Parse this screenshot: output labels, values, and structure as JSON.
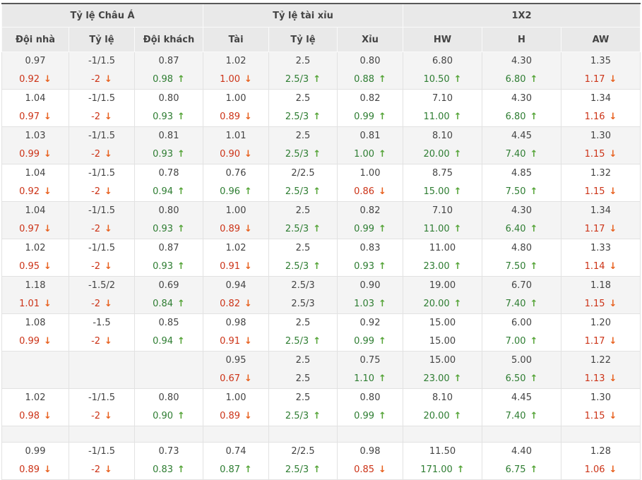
{
  "colors": {
    "top_border": "#585858",
    "header_bg": "#e9e9e9",
    "row_alt_bg": "#f4f4f4",
    "text_default": "#444444",
    "down_text": "#cc3317",
    "down_arrow": "#e8611f",
    "up_text": "#2e7d32",
    "up_arrow": "#55a437"
  },
  "icons": {
    "up": "↑",
    "down": "↓"
  },
  "table": {
    "groups": [
      {
        "label": "Tỷ lệ Châu Á",
        "span": 3
      },
      {
        "label": "Tỷ lệ tài xỉu",
        "span": 3
      },
      {
        "label": "1X2",
        "span": 3
      }
    ],
    "columns": [
      "Đội nhà",
      "Tỷ lệ",
      "Đội khách",
      "Tài",
      "Tỷ lệ",
      "Xỉu",
      "HW",
      "H",
      "AW"
    ],
    "rows": [
      {
        "type": "data",
        "cells": [
          {
            "top": "0.97",
            "bottom": "0.92",
            "trend": "down"
          },
          {
            "top": "-1/1.5",
            "bottom": "-2",
            "trend": "down"
          },
          {
            "top": "0.87",
            "bottom": "0.98",
            "trend": "up"
          },
          {
            "top": "1.02",
            "bottom": "1.00",
            "trend": "down"
          },
          {
            "top": "2.5",
            "bottom": "2.5/3",
            "trend": "up"
          },
          {
            "top": "0.80",
            "bottom": "0.88",
            "trend": "up"
          },
          {
            "top": "6.80",
            "bottom": "10.50",
            "trend": "up"
          },
          {
            "top": "4.30",
            "bottom": "6.80",
            "trend": "up"
          },
          {
            "top": "1.35",
            "bottom": "1.17",
            "trend": "down"
          }
        ]
      },
      {
        "type": "data",
        "cells": [
          {
            "top": "1.04",
            "bottom": "0.97",
            "trend": "down"
          },
          {
            "top": "-1/1.5",
            "bottom": "-2",
            "trend": "down"
          },
          {
            "top": "0.80",
            "bottom": "0.93",
            "trend": "up"
          },
          {
            "top": "1.00",
            "bottom": "0.89",
            "trend": "down"
          },
          {
            "top": "2.5",
            "bottom": "2.5/3",
            "trend": "up"
          },
          {
            "top": "0.82",
            "bottom": "0.99",
            "trend": "up"
          },
          {
            "top": "7.10",
            "bottom": "11.00",
            "trend": "up"
          },
          {
            "top": "4.30",
            "bottom": "6.80",
            "trend": "up"
          },
          {
            "top": "1.34",
            "bottom": "1.16",
            "trend": "down"
          }
        ]
      },
      {
        "type": "data",
        "cells": [
          {
            "top": "1.03",
            "bottom": "0.99",
            "trend": "down"
          },
          {
            "top": "-1/1.5",
            "bottom": "-2",
            "trend": "down"
          },
          {
            "top": "0.81",
            "bottom": "0.93",
            "trend": "up"
          },
          {
            "top": "1.01",
            "bottom": "0.90",
            "trend": "down"
          },
          {
            "top": "2.5",
            "bottom": "2.5/3",
            "trend": "up"
          },
          {
            "top": "0.81",
            "bottom": "1.00",
            "trend": "up"
          },
          {
            "top": "8.10",
            "bottom": "20.00",
            "trend": "up"
          },
          {
            "top": "4.45",
            "bottom": "7.40",
            "trend": "up"
          },
          {
            "top": "1.30",
            "bottom": "1.15",
            "trend": "down"
          }
        ]
      },
      {
        "type": "data",
        "cells": [
          {
            "top": "1.04",
            "bottom": "0.92",
            "trend": "down"
          },
          {
            "top": "-1/1.5",
            "bottom": "-2",
            "trend": "down"
          },
          {
            "top": "0.78",
            "bottom": "0.94",
            "trend": "up"
          },
          {
            "top": "0.76",
            "bottom": "0.96",
            "trend": "up"
          },
          {
            "top": "2/2.5",
            "bottom": "2.5/3",
            "trend": "up"
          },
          {
            "top": "1.00",
            "bottom": "0.86",
            "trend": "down"
          },
          {
            "top": "8.75",
            "bottom": "15.00",
            "trend": "up"
          },
          {
            "top": "4.85",
            "bottom": "7.50",
            "trend": "up"
          },
          {
            "top": "1.32",
            "bottom": "1.15",
            "trend": "down"
          }
        ]
      },
      {
        "type": "data",
        "cells": [
          {
            "top": "1.04",
            "bottom": "0.97",
            "trend": "down"
          },
          {
            "top": "-1/1.5",
            "bottom": "-2",
            "trend": "down"
          },
          {
            "top": "0.80",
            "bottom": "0.93",
            "trend": "up"
          },
          {
            "top": "1.00",
            "bottom": "0.89",
            "trend": "down"
          },
          {
            "top": "2.5",
            "bottom": "2.5/3",
            "trend": "up"
          },
          {
            "top": "0.82",
            "bottom": "0.99",
            "trend": "up"
          },
          {
            "top": "7.10",
            "bottom": "11.00",
            "trend": "up"
          },
          {
            "top": "4.30",
            "bottom": "6.40",
            "trend": "up"
          },
          {
            "top": "1.34",
            "bottom": "1.17",
            "trend": "down"
          }
        ]
      },
      {
        "type": "data",
        "cells": [
          {
            "top": "1.02",
            "bottom": "0.95",
            "trend": "down"
          },
          {
            "top": "-1/1.5",
            "bottom": "-2",
            "trend": "down"
          },
          {
            "top": "0.87",
            "bottom": "0.93",
            "trend": "up"
          },
          {
            "top": "1.02",
            "bottom": "0.91",
            "trend": "down"
          },
          {
            "top": "2.5",
            "bottom": "2.5/3",
            "trend": "up"
          },
          {
            "top": "0.83",
            "bottom": "0.93",
            "trend": "up"
          },
          {
            "top": "11.00",
            "bottom": "23.00",
            "trend": "up"
          },
          {
            "top": "4.80",
            "bottom": "7.50",
            "trend": "up"
          },
          {
            "top": "1.33",
            "bottom": "1.14",
            "trend": "down"
          }
        ]
      },
      {
        "type": "data",
        "cells": [
          {
            "top": "1.18",
            "bottom": "1.01",
            "trend": "down"
          },
          {
            "top": "-1.5/2",
            "bottom": "-2",
            "trend": "down"
          },
          {
            "top": "0.69",
            "bottom": "0.84",
            "trend": "up"
          },
          {
            "top": "0.94",
            "bottom": "0.82",
            "trend": "down"
          },
          {
            "top": "2.5/3",
            "bottom": "2.5/3",
            "trend": "none"
          },
          {
            "top": "0.90",
            "bottom": "1.03",
            "trend": "up"
          },
          {
            "top": "19.00",
            "bottom": "20.00",
            "trend": "up"
          },
          {
            "top": "6.70",
            "bottom": "7.40",
            "trend": "up"
          },
          {
            "top": "1.18",
            "bottom": "1.15",
            "trend": "down"
          }
        ]
      },
      {
        "type": "data",
        "cells": [
          {
            "top": "1.08",
            "bottom": "0.99",
            "trend": "down"
          },
          {
            "top": "-1.5",
            "bottom": "-2",
            "trend": "down"
          },
          {
            "top": "0.85",
            "bottom": "0.94",
            "trend": "up"
          },
          {
            "top": "0.98",
            "bottom": "0.91",
            "trend": "down"
          },
          {
            "top": "2.5",
            "bottom": "2.5/3",
            "trend": "up"
          },
          {
            "top": "0.92",
            "bottom": "0.99",
            "trend": "up"
          },
          {
            "top": "15.00",
            "bottom": "15.00",
            "trend": "none"
          },
          {
            "top": "6.00",
            "bottom": "7.00",
            "trend": "up"
          },
          {
            "top": "1.20",
            "bottom": "1.17",
            "trend": "down"
          }
        ]
      },
      {
        "type": "data",
        "cells": [
          {
            "top": "",
            "bottom": "",
            "trend": "none"
          },
          {
            "top": "",
            "bottom": "",
            "trend": "none"
          },
          {
            "top": "",
            "bottom": "",
            "trend": "none"
          },
          {
            "top": "0.95",
            "bottom": "0.67",
            "trend": "down"
          },
          {
            "top": "2.5",
            "bottom": "2.5",
            "trend": "none"
          },
          {
            "top": "0.75",
            "bottom": "1.10",
            "trend": "up"
          },
          {
            "top": "15.00",
            "bottom": "23.00",
            "trend": "up"
          },
          {
            "top": "5.00",
            "bottom": "6.50",
            "trend": "up"
          },
          {
            "top": "1.22",
            "bottom": "1.13",
            "trend": "down"
          }
        ]
      },
      {
        "type": "data",
        "cells": [
          {
            "top": "1.02",
            "bottom": "0.98",
            "trend": "down"
          },
          {
            "top": "-1/1.5",
            "bottom": "-2",
            "trend": "down"
          },
          {
            "top": "0.80",
            "bottom": "0.90",
            "trend": "up"
          },
          {
            "top": "1.00",
            "bottom": "0.89",
            "trend": "down"
          },
          {
            "top": "2.5",
            "bottom": "2.5/3",
            "trend": "up"
          },
          {
            "top": "0.80",
            "bottom": "0.99",
            "trend": "up"
          },
          {
            "top": "8.10",
            "bottom": "20.00",
            "trend": "up"
          },
          {
            "top": "4.45",
            "bottom": "7.40",
            "trend": "up"
          },
          {
            "top": "1.30",
            "bottom": "1.15",
            "trend": "down"
          }
        ]
      },
      {
        "type": "separator"
      },
      {
        "type": "data",
        "cells": [
          {
            "top": "0.99",
            "bottom": "0.89",
            "trend": "down"
          },
          {
            "top": "-1/1.5",
            "bottom": "-2",
            "trend": "down"
          },
          {
            "top": "0.73",
            "bottom": "0.83",
            "trend": "up"
          },
          {
            "top": "0.74",
            "bottom": "0.87",
            "trend": "up"
          },
          {
            "top": "2/2.5",
            "bottom": "2.5/3",
            "trend": "up"
          },
          {
            "top": "0.98",
            "bottom": "0.85",
            "trend": "down"
          },
          {
            "top": "11.50",
            "bottom": "171.00",
            "trend": "up"
          },
          {
            "top": "4.40",
            "bottom": "6.75",
            "trend": "up"
          },
          {
            "top": "1.28",
            "bottom": "1.06",
            "trend": "down"
          }
        ]
      }
    ]
  }
}
